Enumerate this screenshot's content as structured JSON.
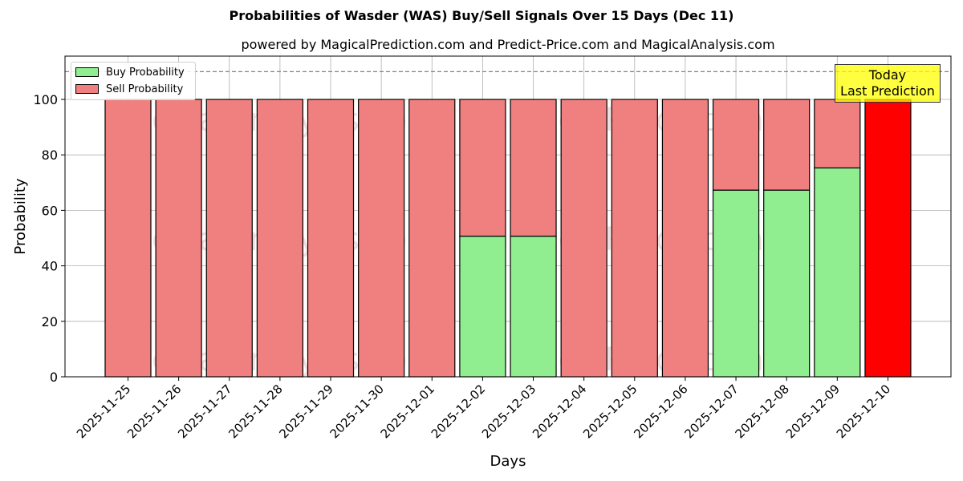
{
  "chart_data": {
    "type": "bar",
    "stacked": true,
    "title": "Probabilities of Wasder (WAS) Buy/Sell Signals Over 15 Days (Dec 11)",
    "subtitle": "powered by MagicalPrediction.com and Predict-Price.com and MagicalAnalysis.com",
    "xlabel": "Days",
    "ylabel": "Probability",
    "ylim": [
      0,
      115
    ],
    "yticks": [
      0,
      20,
      40,
      60,
      80,
      100
    ],
    "reference_line": {
      "y": 110,
      "style": "dashed",
      "color": "#808080"
    },
    "grid": true,
    "legend_position": "upper left",
    "categories": [
      "2025-11-25",
      "2025-11-26",
      "2025-11-27",
      "2025-11-28",
      "2025-11-29",
      "2025-11-30",
      "2025-12-01",
      "2025-12-02",
      "2025-12-03",
      "2025-12-04",
      "2025-12-05",
      "2025-12-06",
      "2025-12-07",
      "2025-12-08",
      "2025-12-09",
      "2025-12-10"
    ],
    "series": [
      {
        "name": "Buy Probability",
        "color": "#90ee90",
        "values": [
          0,
          0,
          0,
          0,
          0,
          0,
          0,
          50.7,
          50.7,
          0,
          0,
          0,
          67.3,
          67.3,
          75.3,
          0
        ]
      },
      {
        "name": "Sell Probability",
        "color": "#f08080",
        "values": [
          100,
          100,
          100,
          100,
          100,
          100,
          100,
          49.3,
          49.3,
          100,
          100,
          100,
          32.7,
          32.7,
          24.7,
          100
        ]
      }
    ],
    "highlight": {
      "category": "2025-12-10",
      "color": "#ff0000",
      "annotation": [
        "Today",
        "Last Prediction"
      ]
    },
    "watermarks": [
      "MagicalAnalysis.com",
      "MagicalPrediction.com"
    ]
  },
  "legend": {
    "buy": "Buy Probability",
    "sell": "Sell Probability"
  },
  "annotation": {
    "line1": "Today",
    "line2": "Last Prediction"
  }
}
